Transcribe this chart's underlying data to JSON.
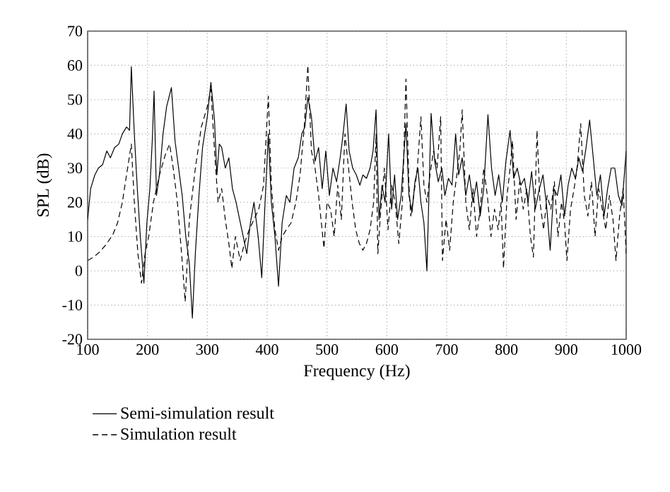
{
  "chart_data": {
    "type": "line",
    "xlabel": "Frequency (Hz)",
    "ylabel": "SPL (dB)",
    "xlim": [
      100,
      1000
    ],
    "ylim": [
      -20,
      70
    ],
    "xticks": [
      100,
      200,
      300,
      400,
      500,
      600,
      700,
      800,
      900,
      1000
    ],
    "yticks": [
      -20,
      -10,
      0,
      10,
      20,
      30,
      40,
      50,
      60,
      70
    ],
    "grid": true,
    "legend": "bottom left",
    "marker": "none",
    "series": [
      {
        "name": "Semi-simulation result",
        "color": "#000000",
        "line_style": "solid",
        "x": [
          100,
          105,
          112,
          118,
          125,
          132,
          138,
          145,
          152,
          158,
          165,
          170,
          173,
          178,
          183,
          188,
          194,
          199,
          204,
          208,
          211,
          215,
          220,
          226,
          232,
          240,
          246,
          252,
          258,
          264,
          270,
          275,
          280,
          286,
          292,
          300,
          306,
          312,
          316,
          320,
          324,
          330,
          336,
          342,
          348,
          354,
          360,
          366,
          372,
          378,
          385,
          391,
          396,
          402,
          407,
          413,
          419,
          425,
          432,
          438,
          445,
          452,
          458,
          463,
          468,
          474,
          480,
          486,
          492,
          498,
          504,
          510,
          516,
          522,
          527,
          532,
          537,
          543,
          549,
          555,
          560,
          566,
          572,
          577,
          582,
          587,
          592,
          597,
          603,
          608,
          613,
          618,
          624,
          632,
          637,
          642,
          647,
          652,
          657,
          662,
          667,
          674,
          680,
          686,
          692,
          697,
          703,
          709,
          715,
          720,
          726,
          732,
          738,
          744,
          750,
          756,
          762,
          769,
          775,
          781,
          787,
          793,
          799,
          806,
          812,
          818,
          824,
          830,
          836,
          842,
          848,
          855,
          861,
          867,
          873,
          879,
          885,
          891,
          897,
          903,
          909,
          915,
          921,
          927,
          933,
          939,
          945,
          951,
          957,
          963,
          969,
          975,
          981,
          987,
          993,
          1000
        ],
        "values": [
          15,
          24,
          28,
          30,
          31,
          35,
          33,
          36,
          37,
          40,
          42,
          41,
          59.6,
          40,
          24,
          10,
          -3.6,
          14,
          24,
          38,
          52.5,
          22,
          28,
          40,
          48,
          53.5,
          38,
          30,
          22,
          10,
          2,
          -13.8,
          5,
          22,
          36,
          45,
          55,
          44,
          28,
          37,
          36,
          30,
          33,
          24,
          20,
          15,
          10,
          5,
          14,
          20,
          10,
          -2,
          18,
          40,
          20,
          10,
          -4.5,
          14,
          22,
          20,
          30,
          33,
          40,
          42,
          50.7,
          45,
          32,
          36,
          24,
          35,
          22,
          30,
          26,
          33,
          40,
          48.7,
          35,
          30,
          28,
          25,
          28,
          27,
          30,
          35,
          47,
          15,
          25,
          20,
          40,
          18,
          28,
          15,
          22,
          43,
          22,
          17,
          26,
          30,
          20,
          14,
          0,
          46,
          32,
          26,
          30,
          22,
          27,
          25,
          40,
          28,
          33,
          22,
          28,
          20,
          26,
          16,
          24,
          45.6,
          30,
          22,
          28,
          20,
          32,
          41,
          27,
          30,
          25,
          27,
          20,
          29,
          18,
          24,
          28,
          19,
          6,
          24,
          22,
          28,
          16,
          25,
          30,
          27,
          33,
          29,
          36,
          44,
          33,
          22,
          28,
          16,
          24,
          30,
          30,
          22,
          19,
          35
        ]
      },
      {
        "name": "Simulation result",
        "color": "#000000",
        "line_style": "dashed",
        "x": [
          100,
          110,
          120,
          130,
          142,
          150,
          158,
          165,
          173,
          178,
          184,
          190,
          196,
          202,
          210,
          220,
          230,
          237,
          243,
          250,
          257,
          263,
          270,
          280,
          290,
          300,
          306,
          312,
          318,
          324,
          330,
          336,
          341,
          347,
          355,
          362,
          370,
          378,
          386,
          394,
          402,
          407,
          413,
          419,
          425,
          432,
          440,
          448,
          455,
          462,
          468,
          474,
          480,
          486,
          490,
          495,
          500,
          506,
          512,
          518,
          524,
          530,
          536,
          542,
          548,
          554,
          560,
          566,
          572,
          578,
          582,
          585,
          590,
          596,
          602,
          608,
          614,
          620,
          626,
          632,
          637,
          640,
          645,
          651,
          657,
          662,
          667,
          672,
          678,
          684,
          690,
          693,
          699,
          705,
          711,
          717,
          722,
          726,
          732,
          738,
          744,
          750,
          756,
          762,
          768,
          774,
          780,
          786,
          791,
          795,
          801,
          806,
          810,
          816,
          822,
          828,
          834,
          840,
          845,
          851,
          856,
          862,
          868,
          874,
          880,
          886,
          892,
          897,
          901,
          907,
          913,
          918,
          924,
          930,
          936,
          942,
          948,
          954,
          960,
          966,
          972,
          978,
          983,
          989,
          995,
          1000
        ],
        "values": [
          3,
          4,
          5.5,
          7.5,
          10.5,
          14,
          20,
          28,
          37,
          20,
          5,
          -3.6,
          5,
          10,
          20,
          28,
          34,
          37,
          30,
          20,
          5,
          -9,
          15,
          30,
          42,
          48,
          53,
          35,
          20,
          24,
          15,
          8,
          0.7,
          10,
          3,
          8,
          12,
          15,
          18,
          25,
          51,
          25,
          12,
          6,
          10,
          12,
          14,
          20,
          28,
          42,
          60,
          35,
          30,
          22,
          15,
          6.6,
          20,
          18,
          10,
          25,
          15,
          40,
          30,
          20,
          12,
          8,
          6,
          8,
          12,
          20,
          40,
          5,
          18,
          30,
          12,
          25,
          20,
          8,
          20,
          56,
          25,
          16,
          22,
          30,
          45,
          25,
          20,
          28,
          35,
          30,
          45,
          3,
          15,
          6,
          20,
          28,
          35,
          47,
          20,
          12,
          24,
          10,
          18,
          30,
          22,
          10,
          18,
          12,
          20,
          0.7,
          22,
          30,
          38,
          15,
          26,
          18,
          24,
          10,
          4,
          41,
          20,
          12,
          22,
          18,
          26,
          10,
          20,
          14,
          3,
          18,
          24,
          30,
          43,
          22,
          16,
          26,
          10,
          24,
          18,
          12,
          22,
          15,
          3,
          16,
          24,
          5
        ]
      }
    ]
  }
}
